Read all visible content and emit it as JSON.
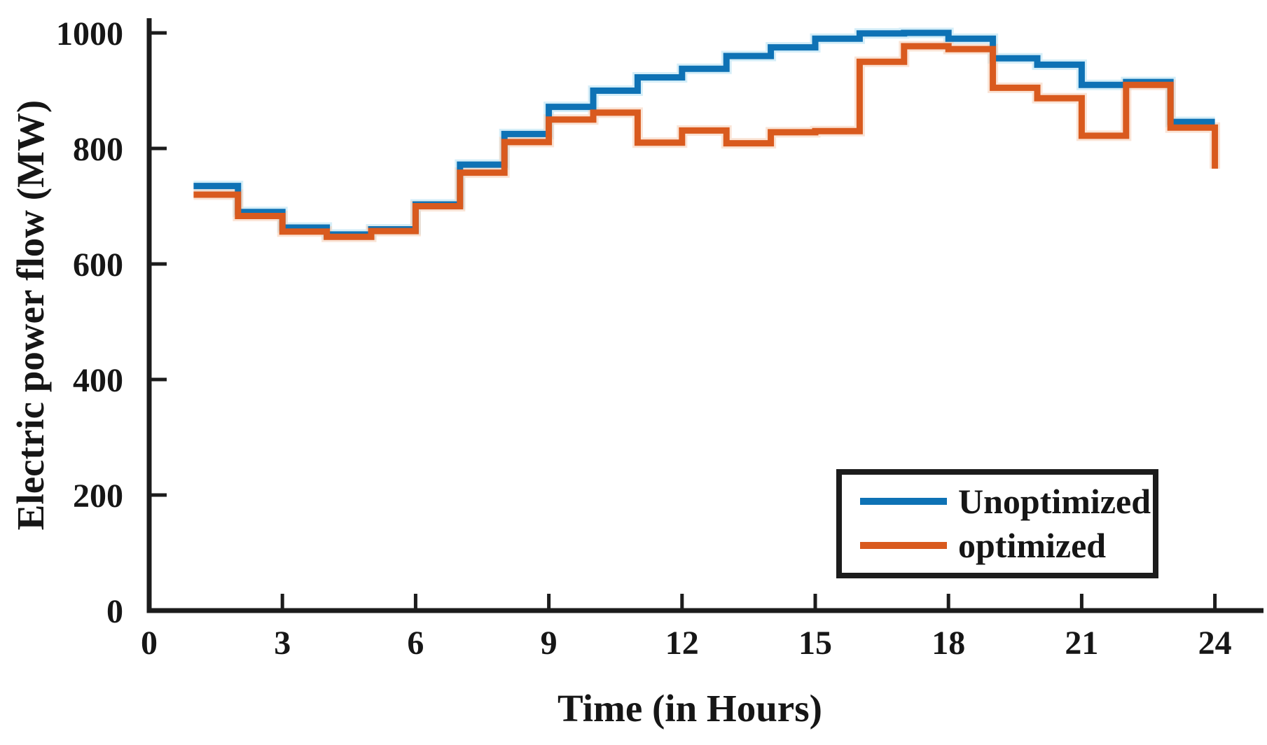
{
  "figure": {
    "background": "#ffffff",
    "axis_color": "#1c1c1c"
  },
  "chart_data": {
    "type": "line",
    "subtype": "stairs",
    "title": "",
    "xlabel": "Time (in Hours)",
    "ylabel": "Electric power flow (MW)",
    "x": [
      1,
      2,
      3,
      4,
      5,
      6,
      7,
      8,
      9,
      10,
      11,
      12,
      13,
      14,
      15,
      16,
      17,
      18,
      19,
      20,
      21,
      22,
      23,
      24
    ],
    "series": [
      {
        "name": "Unoptimized",
        "color": "#0e72b5",
        "halo_color": "#b9e2f4",
        "values": [
          735,
          690,
          663,
          651,
          660,
          703,
          772,
          825,
          872,
          900,
          923,
          938,
          960,
          975,
          990,
          999,
          1000,
          990,
          956,
          945,
          910,
          915,
          846,
          846
        ]
      },
      {
        "name": "optimized",
        "color": "#d95a1e",
        "halo_color": "#f6d2ba",
        "values": [
          720,
          683,
          656,
          647,
          657,
          700,
          758,
          811,
          850,
          862,
          810,
          831,
          809,
          828,
          830,
          950,
          977,
          972,
          905,
          887,
          822,
          910,
          836,
          765
        ]
      }
    ],
    "xlim": [
      0,
      25.1
    ],
    "ylim": [
      0,
      1025
    ],
    "xticks": [
      0,
      3,
      6,
      9,
      12,
      15,
      18,
      21,
      24
    ],
    "yticks": [
      0,
      200,
      400,
      600,
      800,
      1000
    ],
    "grid": false,
    "legend": {
      "position": "inside-lower-right",
      "entries": [
        "Unoptimized",
        "optimized"
      ]
    }
  }
}
